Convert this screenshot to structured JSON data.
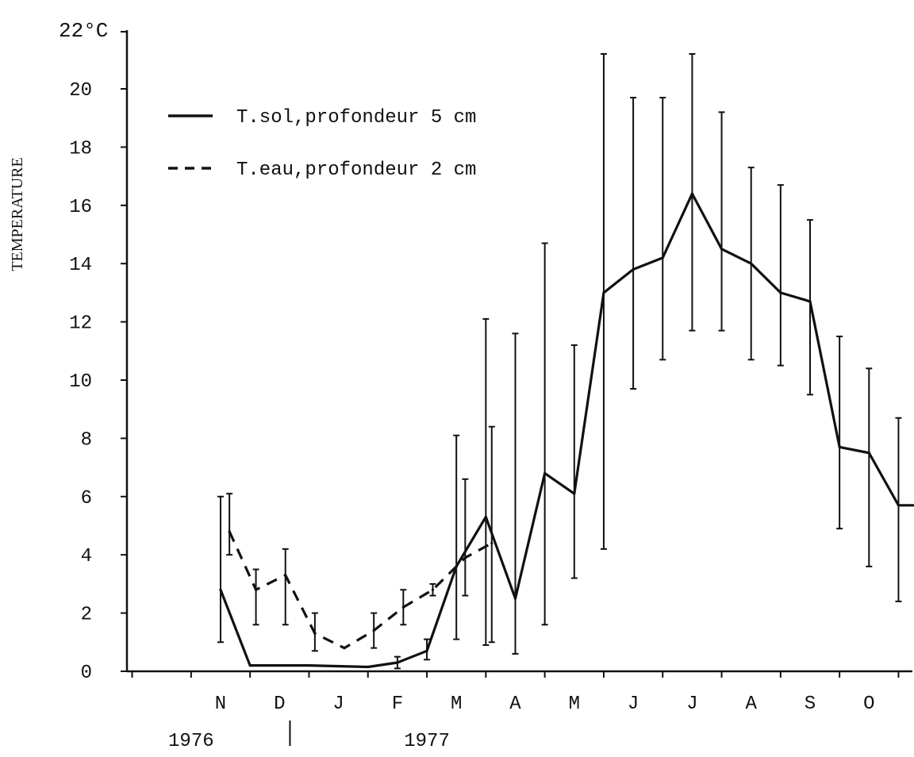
{
  "chart_data": {
    "type": "line",
    "y_unit_label": "22°C",
    "ylabel": "TEMPERATURE",
    "ylim": [
      0,
      22
    ],
    "y_ticks": [
      0,
      2,
      4,
      6,
      8,
      10,
      12,
      14,
      16,
      18,
      20
    ],
    "y_tick_labels": [
      "0",
      "2",
      "4",
      "6",
      "8",
      "10",
      "12",
      "14",
      "16",
      "18",
      "20"
    ],
    "xlim": [
      -1.2,
      12.5
    ],
    "x_minor_ticks": [
      -1.5,
      -0.5,
      0.5,
      1.5,
      2.5,
      3.5,
      4.5,
      5.5,
      6.5,
      7.5,
      8.5,
      9.5,
      10.5,
      11.5,
      12.5
    ],
    "month_labels": [
      "N",
      "D",
      "J",
      "F",
      "M",
      "A",
      "M",
      "J",
      "J",
      "A",
      "S",
      "O"
    ],
    "month_positions": [
      0,
      1,
      2,
      3,
      4,
      5,
      6,
      7,
      8,
      9,
      10,
      11
    ],
    "year_labels": [
      "1976",
      "1977"
    ],
    "year_label_positions": [
      -0.5,
      3.5
    ],
    "year_separator_position": 1.5,
    "legend": {
      "placement": "top-left",
      "entries": [
        {
          "label": "T.sol,profondeur 5 cm",
          "style": "solid"
        },
        {
          "label": "T.eau,profondeur 2 cm",
          "style": "dashed"
        }
      ]
    },
    "series": [
      {
        "name": "T.sol,profondeur 5 cm",
        "style": "solid",
        "x": [
          0,
          0.5,
          1.5,
          2.5,
          3,
          3.5,
          4,
          4.5,
          5,
          5.5,
          6,
          6.5,
          7,
          7.5,
          8,
          8.5,
          9,
          9.5,
          10,
          10.5,
          11,
          11.5,
          12
        ],
        "y": [
          2.8,
          0.2,
          0.2,
          0.15,
          0.3,
          0.7,
          3.6,
          5.3,
          2.5,
          6.8,
          6.1,
          13.0,
          13.8,
          14.2,
          16.4,
          14.5,
          14.0,
          13.0,
          12.7,
          7.7,
          7.5,
          5.7,
          5.7
        ],
        "err_low": [
          1.0,
          null,
          null,
          null,
          0.1,
          0.4,
          1.1,
          0.9,
          0.6,
          1.6,
          3.2,
          4.2,
          9.7,
          10.7,
          11.7,
          11.7,
          10.7,
          10.5,
          9.5,
          4.9,
          3.6,
          2.4,
          null
        ],
        "err_high": [
          6.0,
          null,
          null,
          null,
          0.5,
          1.1,
          8.1,
          12.1,
          11.6,
          14.7,
          11.2,
          21.2,
          19.7,
          19.7,
          21.2,
          19.2,
          17.3,
          16.7,
          15.5,
          11.5,
          10.4,
          8.7,
          null
        ]
      },
      {
        "name": "T.eau,profondeur 2 cm",
        "style": "dashed",
        "x": [
          0.15,
          0.6,
          1.1,
          1.6,
          2.1,
          2.6,
          3.1,
          3.6,
          4.15,
          4.6
        ],
        "y": [
          4.8,
          2.8,
          3.3,
          1.3,
          0.8,
          1.4,
          2.2,
          2.8,
          3.9,
          4.4
        ],
        "err_low": [
          4.0,
          1.6,
          1.6,
          0.7,
          null,
          0.8,
          1.6,
          2.6,
          2.6,
          1.0
        ],
        "err_high": [
          6.1,
          3.5,
          4.2,
          2.0,
          null,
          2.0,
          2.8,
          3.0,
          6.6,
          8.4
        ]
      }
    ]
  }
}
